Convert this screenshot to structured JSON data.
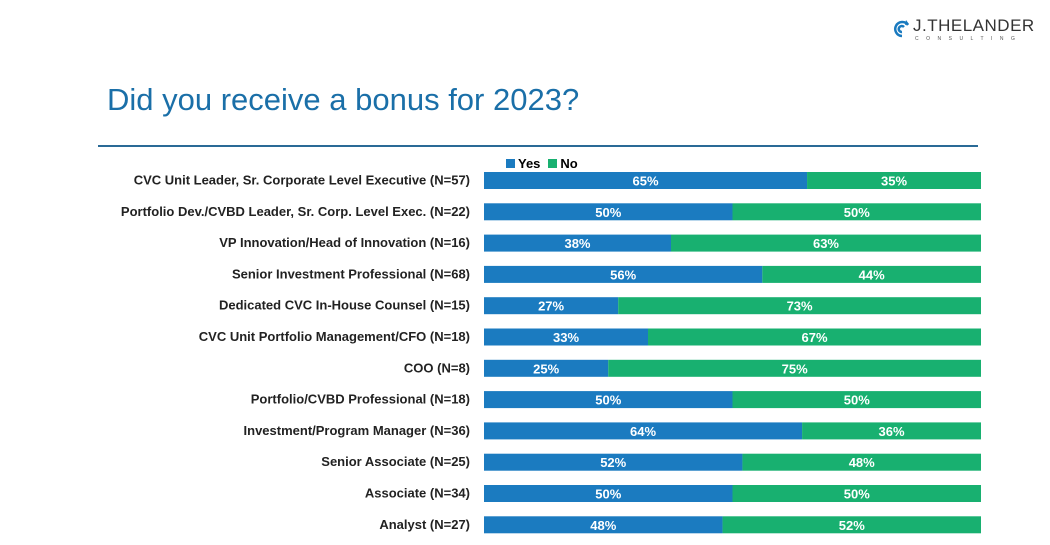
{
  "logo": {
    "name": "J.THELANDER",
    "sub": "CONSULTING"
  },
  "title": "Did you receive a bonus for 2023?",
  "chart_data": {
    "type": "bar",
    "orientation": "horizontal-stacked-100",
    "categories": [
      "CVC Unit Leader, Sr. Corporate Level Executive (N=57)",
      "Portfolio Dev./CVBD Leader, Sr. Corp. Level Exec. (N=22)",
      "VP Innovation/Head of Innovation (N=16)",
      "Senior Investment Professional (N=68)",
      "Dedicated CVC In-House Counsel (N=15)",
      "CVC Unit Portfolio Management/CFO (N=18)",
      "COO (N=8)",
      "Portfolio/CVBD Professional (N=18)",
      "Investment/Program Manager (N=36)",
      "Senior Associate (N=25)",
      "Associate (N=34)",
      "Analyst (N=27)"
    ],
    "series": [
      {
        "name": "Yes",
        "color": "#1b7bc0",
        "values": [
          65,
          50,
          38,
          56,
          27,
          33,
          25,
          50,
          64,
          52,
          50,
          48
        ]
      },
      {
        "name": "No",
        "color": "#18b070",
        "values": [
          35,
          50,
          63,
          44,
          73,
          67,
          75,
          50,
          36,
          48,
          50,
          52
        ]
      }
    ],
    "value_format": "percent",
    "legend": "top",
    "grid": false
  }
}
